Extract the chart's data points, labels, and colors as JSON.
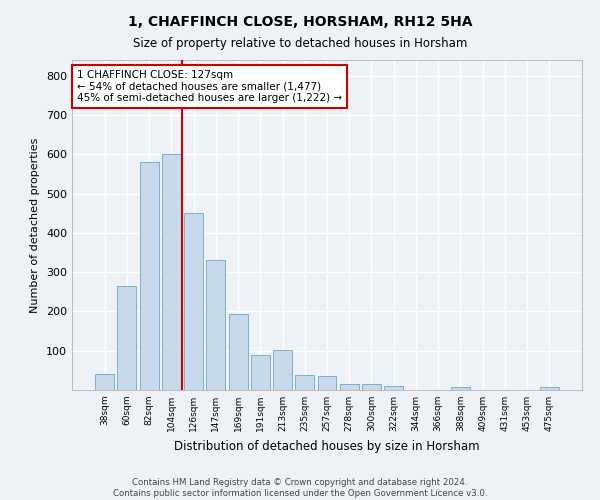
{
  "title1": "1, CHAFFINCH CLOSE, HORSHAM, RH12 5HA",
  "title2": "Size of property relative to detached houses in Horsham",
  "xlabel": "Distribution of detached houses by size in Horsham",
  "ylabel": "Number of detached properties",
  "categories": [
    "38sqm",
    "60sqm",
    "82sqm",
    "104sqm",
    "126sqm",
    "147sqm",
    "169sqm",
    "191sqm",
    "213sqm",
    "235sqm",
    "257sqm",
    "278sqm",
    "300sqm",
    "322sqm",
    "344sqm",
    "366sqm",
    "388sqm",
    "409sqm",
    "431sqm",
    "453sqm",
    "475sqm"
  ],
  "values": [
    40,
    265,
    580,
    600,
    450,
    330,
    193,
    90,
    103,
    38,
    35,
    15,
    15,
    10,
    0,
    0,
    8,
    0,
    0,
    0,
    8
  ],
  "bar_color": "#c8daea",
  "bar_edge_color": "#7bafd4",
  "highlight_line_color": "#cc0000",
  "annotation_text": "1 CHAFFINCH CLOSE: 127sqm\n← 54% of detached houses are smaller (1,477)\n45% of semi-detached houses are larger (1,222) →",
  "annotation_box_color": "#ffffff",
  "annotation_box_edge_color": "#cc0000",
  "ylim": [
    0,
    840
  ],
  "yticks": [
    0,
    100,
    200,
    300,
    400,
    500,
    600,
    700,
    800
  ],
  "background_color": "#eef2f7",
  "plot_bg_color": "#eef2f7",
  "grid_color": "#ffffff",
  "footnote": "Contains HM Land Registry data © Crown copyright and database right 2024.\nContains public sector information licensed under the Open Government Licence v3.0."
}
